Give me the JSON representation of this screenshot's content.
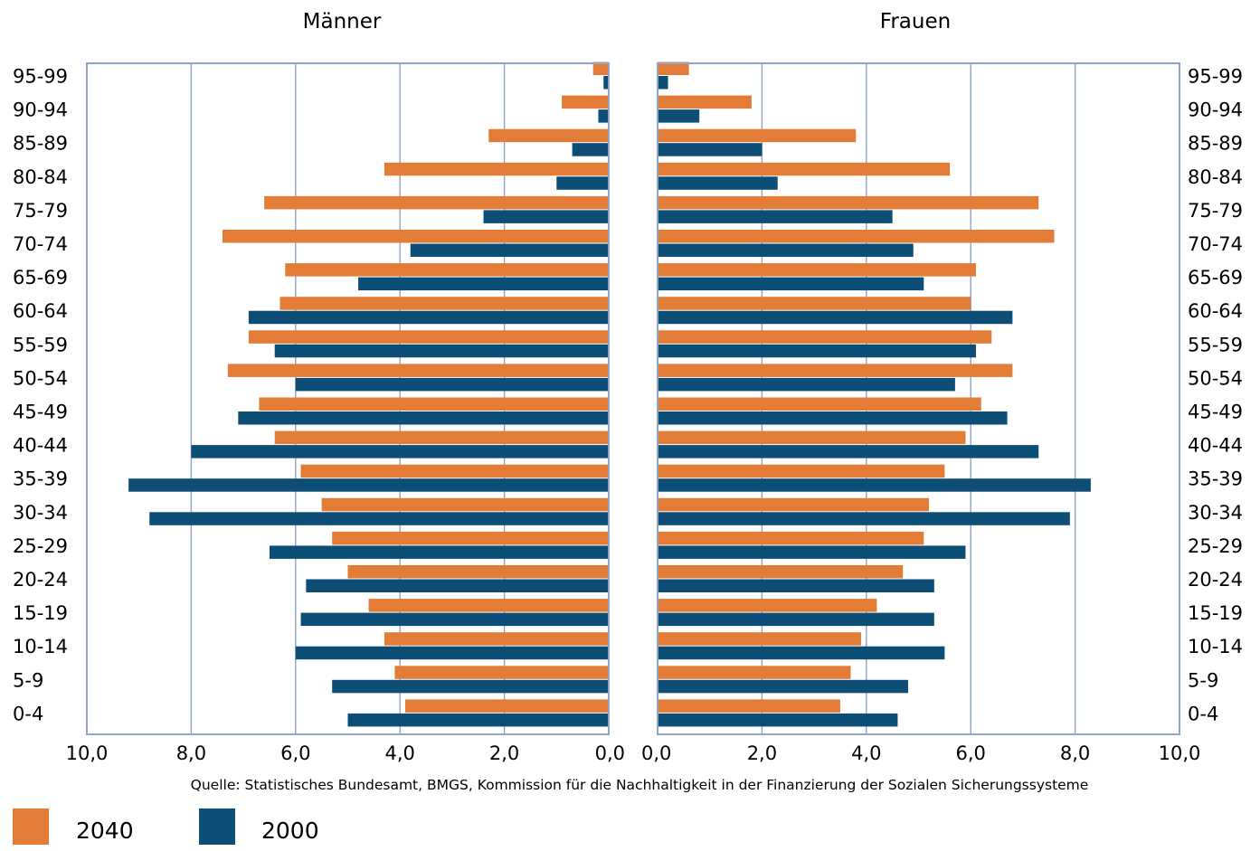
{
  "chart_data": {
    "type": "bar",
    "orientation": "horizontal",
    "layout": "population-pyramid",
    "panels": [
      {
        "title": "Männer",
        "direction": "left"
      },
      {
        "title": "Frauen",
        "direction": "right"
      }
    ],
    "categories": [
      "95-99",
      "90-94",
      "85-89",
      "80-84",
      "75-79",
      "70-74",
      "65-69",
      "60-64",
      "55-59",
      "50-54",
      "45-49",
      "40-44",
      "35-39",
      "30-34",
      "25-29",
      "20-24",
      "15-19",
      "10-14",
      "5-9",
      "0-4"
    ],
    "xlim": [
      0,
      10
    ],
    "x_ticks": [
      "10,0",
      "8,0",
      "6,0",
      "4,0",
      "2,0",
      "0,0",
      "0,0",
      "2,0",
      "4,0",
      "6,0",
      "8,0",
      "10,0"
    ],
    "grid": "vertical",
    "series": [
      {
        "name": "2040",
        "color": "#e37c36",
        "maenner": [
          0.3,
          0.9,
          2.3,
          4.3,
          6.6,
          7.4,
          6.2,
          6.3,
          6.9,
          7.3,
          6.7,
          6.4,
          5.9,
          5.5,
          5.3,
          5.0,
          4.6,
          4.3,
          4.1,
          3.9
        ],
        "frauen": [
          0.6,
          1.8,
          3.8,
          5.6,
          7.3,
          7.6,
          6.1,
          6.0,
          6.4,
          6.8,
          6.2,
          5.9,
          5.5,
          5.2,
          5.1,
          4.7,
          4.2,
          3.9,
          3.7,
          3.5
        ]
      },
      {
        "name": "2000",
        "color": "#0d4e77",
        "maenner": [
          0.1,
          0.2,
          0.7,
          1.0,
          2.4,
          3.8,
          4.8,
          6.9,
          6.4,
          6.0,
          7.1,
          8.0,
          9.2,
          8.8,
          6.5,
          5.8,
          5.9,
          6.0,
          5.3,
          5.0
        ],
        "frauen": [
          0.2,
          0.8,
          2.0,
          2.3,
          4.5,
          4.9,
          5.1,
          6.8,
          6.1,
          5.7,
          6.7,
          7.3,
          8.3,
          7.9,
          5.9,
          5.3,
          5.3,
          5.5,
          4.8,
          4.6
        ]
      }
    ],
    "source": "Quelle: Statistisches Bundesamt, BMGS, Kommission für die Nachhaltigkeit in der Finanzierung der Sozialen Sicherungssysteme",
    "legend": [
      {
        "label": "2040",
        "color": "#e37c36"
      },
      {
        "label": "2000",
        "color": "#0d4e77"
      }
    ],
    "legend_position": "bottom-left"
  },
  "colors": {
    "grid": "#8fa4c8",
    "frame": "#8fa4c8",
    "text": "#1a1a1a"
  }
}
